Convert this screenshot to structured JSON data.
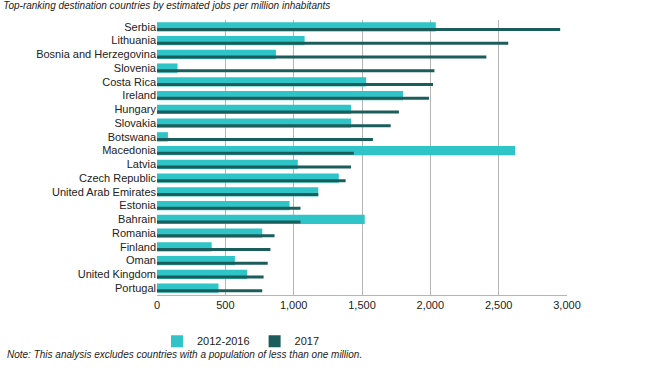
{
  "chart_data": {
    "type": "bar",
    "orientation": "horizontal",
    "title": "Top-ranking destination countries by estimated jobs per million inhabitants",
    "annotations": [
      "Note: This analysis excludes countries with a population of less than one million."
    ],
    "categories": [
      "Serbia",
      "Lithuania",
      "Bosnia and Herzegovina",
      "Slovenia",
      "Costa Rica",
      "Ireland",
      "Hungary",
      "Slovakia",
      "Botswana",
      "Macedonia",
      "Latvia",
      "Czech Republic",
      "United Arab Emirates",
      "Estonia",
      "Bahrain",
      "Romania",
      "Finland",
      "Oman",
      "United Kingdom",
      "Portugal"
    ],
    "series": [
      {
        "name": "2012-2016",
        "color": "#2fc5c8",
        "values": [
          2040,
          1080,
          870,
          150,
          1530,
          1800,
          1420,
          1420,
          80,
          2620,
          1030,
          1330,
          1180,
          970,
          1520,
          770,
          400,
          570,
          660,
          450
        ]
      },
      {
        "name": "2017",
        "color": "#1b5d5b",
        "values": [
          2950,
          2570,
          2410,
          2030,
          2020,
          1990,
          1770,
          1710,
          1580,
          1440,
          1420,
          1380,
          1180,
          1050,
          1050,
          860,
          830,
          810,
          780,
          770
        ]
      }
    ],
    "xlim": [
      0,
      3000
    ],
    "xticks": [
      0,
      500,
      {
        "value": 1000,
        "label": "1,000"
      },
      {
        "value": 1500,
        "label": "1,500"
      },
      {
        "value": 2000,
        "label": "2,000"
      },
      {
        "value": 2500,
        "label": "2,500"
      },
      {
        "value": 3000,
        "label": "3,000"
      }
    ],
    "grid": true,
    "legend": "bottom"
  }
}
